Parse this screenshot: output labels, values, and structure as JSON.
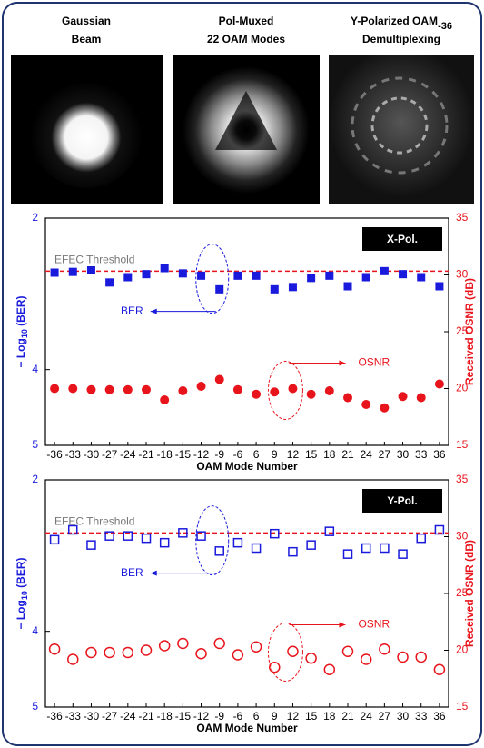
{
  "panels": [
    {
      "title_lines": [
        "Gaussian",
        "Beam"
      ]
    },
    {
      "title_lines": [
        "Pol-Muxed",
        "22 OAM Modes"
      ]
    },
    {
      "title_parts": [
        "Y-Polarized OAM",
        "-36"
      ],
      "title_line2": "Demultiplexing"
    }
  ],
  "chart_data": [
    {
      "type": "scatter",
      "badge": "X-Pol.",
      "xlabel": "OAM Mode Number",
      "ylabel_parts": [
        "− Log",
        "10",
        " (BER)"
      ],
      "y2label": "Received OSNR (dB)",
      "categories": [
        "-36",
        "-33",
        "-30",
        "-27",
        "-24",
        "-21",
        "-18",
        "-15",
        "-12",
        "-9",
        "-6",
        "6",
        "9",
        "12",
        "15",
        "18",
        "21",
        "24",
        "27",
        "30",
        "33",
        "36"
      ],
      "ylim": [
        2,
        5
      ],
      "y_reversed": true,
      "yticks": [
        2,
        4,
        5
      ],
      "y2lim": [
        15,
        35
      ],
      "y2ticks": [
        15,
        20,
        25,
        30,
        35
      ],
      "threshold": {
        "label": "EFEC Threshold",
        "value": 2.7,
        "color": "#e8141c"
      },
      "series": [
        {
          "name": "BER",
          "color": "#1a1adc",
          "marker": "square",
          "filled": true,
          "values": [
            2.72,
            2.71,
            2.69,
            2.85,
            2.78,
            2.74,
            2.66,
            2.73,
            2.76,
            2.94,
            2.76,
            2.76,
            2.94,
            2.91,
            2.79,
            2.76,
            2.9,
            2.78,
            2.7,
            2.74,
            2.78,
            2.9
          ]
        },
        {
          "name": "OSNR",
          "color": "#e8141c",
          "marker": "circle",
          "filled": true,
          "axis": "y2",
          "values": [
            20.0,
            20.0,
            19.9,
            19.9,
            19.9,
            19.9,
            19.0,
            19.8,
            20.2,
            20.8,
            19.9,
            19.5,
            19.7,
            20.0,
            19.5,
            19.8,
            19.2,
            18.6,
            18.3,
            19.3,
            19.2,
            20.4
          ]
        }
      ]
    },
    {
      "type": "scatter",
      "badge": "Y-Pol.",
      "xlabel": "OAM Mode Number",
      "ylabel_parts": [
        "− Log",
        "10",
        " (BER)"
      ],
      "y2label": "Received OSNR (dB)",
      "categories": [
        "-36",
        "-33",
        "-30",
        "-27",
        "-24",
        "-21",
        "-18",
        "-15",
        "-12",
        "-9",
        "-6",
        "6",
        "9",
        "12",
        "15",
        "18",
        "21",
        "24",
        "27",
        "30",
        "33",
        "36"
      ],
      "ylim": [
        2,
        5
      ],
      "y_reversed": true,
      "yticks": [
        2,
        4,
        5
      ],
      "y2lim": [
        15,
        35
      ],
      "y2ticks": [
        15,
        20,
        25,
        30,
        35
      ],
      "threshold": {
        "label": "EFEC Threshold",
        "value": 2.7,
        "color": "#e8141c"
      },
      "series": [
        {
          "name": "BER",
          "color": "#1a1adc",
          "marker": "square",
          "filled": false,
          "values": [
            2.79,
            2.66,
            2.86,
            2.74,
            2.74,
            2.77,
            2.83,
            2.7,
            2.74,
            2.94,
            2.83,
            2.9,
            2.71,
            2.95,
            2.86,
            2.68,
            2.98,
            2.9,
            2.9,
            2.98,
            2.77,
            2.66
          ]
        },
        {
          "name": "OSNR",
          "color": "#e8141c",
          "marker": "circle",
          "filled": false,
          "axis": "y2",
          "values": [
            20.1,
            19.2,
            19.8,
            19.8,
            19.8,
            20.0,
            20.4,
            20.6,
            19.7,
            20.6,
            19.6,
            20.3,
            18.5,
            19.9,
            19.3,
            18.3,
            19.9,
            19.2,
            20.1,
            19.4,
            19.4,
            18.3
          ]
        }
      ]
    }
  ]
}
